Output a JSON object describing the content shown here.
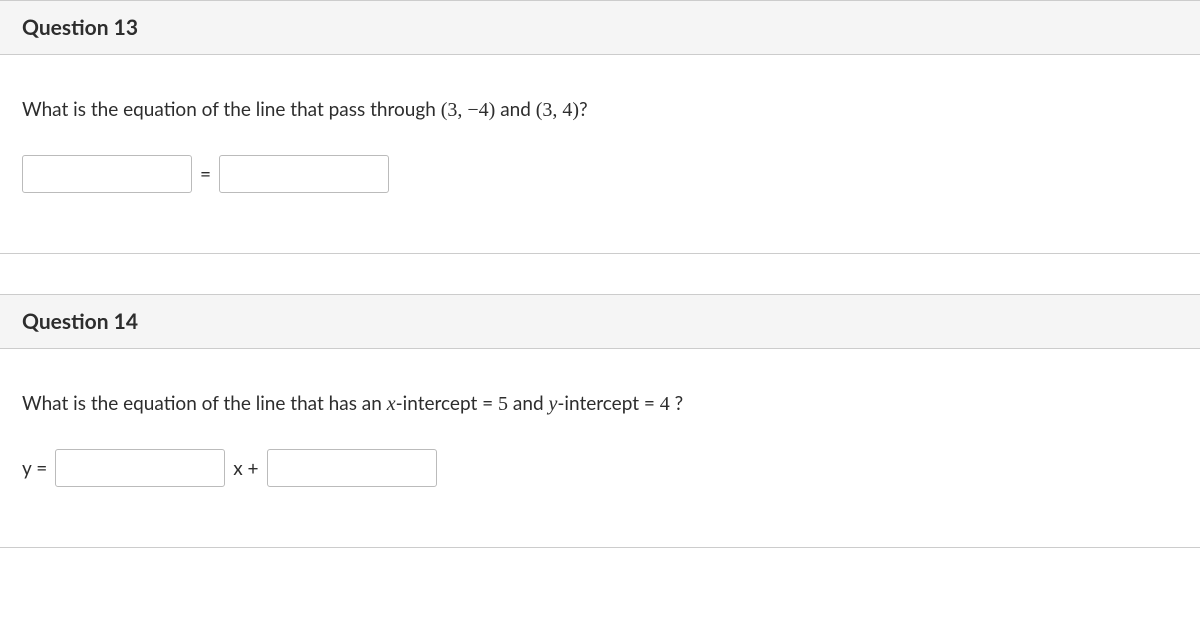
{
  "colors": {
    "header_bg": "#f5f5f5",
    "border": "#cccccc",
    "text": "#2d2d2d",
    "input_border": "#bbbbbb",
    "page_bg": "#ffffff"
  },
  "typography": {
    "body_family": "Lato, Helvetica Neue, Arial, sans-serif",
    "math_family": "Times New Roman, serif",
    "title_fontsize": 21,
    "body_fontsize": 19,
    "title_weight": 700
  },
  "layout": {
    "input_width": 170,
    "input_height": 38,
    "block_gap": 40
  },
  "questions": [
    {
      "number": "Question 13",
      "prompt_pre": "What is the equation of the line that pass through ",
      "point1": "(3,  −4)",
      "mid": " and ",
      "point2": "(3,  4)",
      "post": "?",
      "equals": "=",
      "input1_value": "",
      "input2_value": ""
    },
    {
      "number": "Question 14",
      "prompt_pre": "What is the equation of the line that has an ",
      "xvar": "x",
      "xintercept_text": "-intercept = ",
      "xval": "5",
      "mid": " and ",
      "yvar": "y",
      "yintercept_text": "-intercept = ",
      "yval": "4",
      "post": " ?",
      "ylabel": "y =",
      "xplus": "x +",
      "input1_value": "",
      "input2_value": ""
    }
  ]
}
